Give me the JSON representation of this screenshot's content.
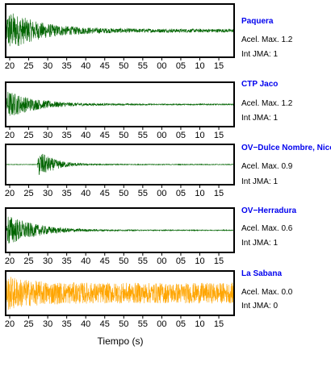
{
  "chart_data": {
    "type": "line",
    "xlabel": "Tiempo (s)",
    "x_ticks": [
      "20",
      "25",
      "30",
      "35",
      "40",
      "45",
      "50",
      "55",
      "00",
      "05",
      "10",
      "15"
    ],
    "panels": [
      {
        "station": "Paquera",
        "accel": "Acel. Max. 1.2",
        "jma": "Int JMA: 1",
        "color": "#006400",
        "onset": 20.0,
        "peak_rel": 0.9,
        "decay": 8,
        "noise_rel": 0.07
      },
      {
        "station": "CTP Jaco",
        "accel": "Acel. Max. 1.2",
        "jma": "Int JMA: 1",
        "color": "#006400",
        "onset": 20.0,
        "peak_rel": 0.75,
        "decay": 7,
        "noise_rel": 0.03
      },
      {
        "station": "OV−Dulce Nombre, Nicoya",
        "accel": "Acel. Max. 0.9",
        "jma": "Int JMA: 1",
        "color": "#006400",
        "onset": 28.0,
        "peak_rel": 0.85,
        "decay": 4,
        "noise_rel": 0.02
      },
      {
        "station": "OV−Herradura",
        "accel": "Acel. Max. 0.6",
        "jma": "Int JMA: 1",
        "color": "#006400",
        "onset": 20.0,
        "peak_rel": 0.85,
        "decay": 7,
        "noise_rel": 0.02
      },
      {
        "station": "La Sabana",
        "accel": "Acel. Max. 0.0",
        "jma": "Int JMA: 0",
        "color": "#ffa500",
        "onset": 20.0,
        "peak_rel": 0.9,
        "decay": 6,
        "noise_rel": 0.5
      }
    ]
  }
}
